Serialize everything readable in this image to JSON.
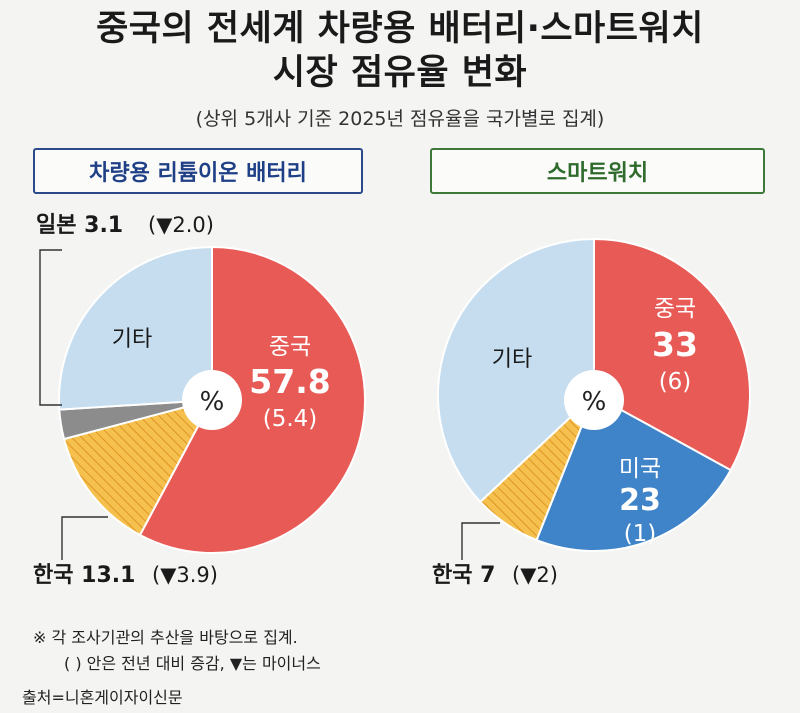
{
  "title_line1": "중국의 전세계 차량용 배터리·스마트워치",
  "title_line2": "시장 점유율 변화",
  "subtitle": "(상위 5개사 기준 2025년 점유율을 국가별로 집계)",
  "center_label": "%",
  "footnote1": "※ 각 조사기관의 추산을 바탕으로 집계.",
  "footnote2": "( ) 안은 전년 대비 증감, ▼는 마이너스",
  "source": "출처=니혼게이자이신문",
  "colors": {
    "china": "#e85a55",
    "korea": "#f5c04e",
    "japan": "#8c8c8c",
    "usa": "#3f83c8",
    "other": "#c5ddef"
  },
  "chart_data": [
    {
      "type": "pie",
      "title": "차량용 리튬이온 배터리",
      "unit": "%",
      "slices": [
        {
          "name": "중국",
          "value": 57.8,
          "change": "(5.4)",
          "color_key": "china"
        },
        {
          "name": "한국",
          "value": 13.1,
          "change": "(▼3.9)",
          "color_key": "korea",
          "hatched": true
        },
        {
          "name": "일본",
          "value": 3.1,
          "change": "(▼2.0)",
          "color_key": "japan"
        },
        {
          "name": "기타",
          "value": 26.0,
          "color_key": "other"
        }
      ],
      "labels": {
        "china_name": "중국",
        "china_value": "57.8",
        "china_change": "(5.4)",
        "other_name": "기타",
        "japan_callout_main": "일본 3.1",
        "japan_callout_change": "(▼2.0)",
        "korea_callout_main": "한국 13.1",
        "korea_callout_change": "(▼3.9)"
      }
    },
    {
      "type": "pie",
      "title": "스마트워치",
      "unit": "%",
      "slices": [
        {
          "name": "중국",
          "value": 33,
          "change": "(6)",
          "color_key": "china"
        },
        {
          "name": "미국",
          "value": 23,
          "change": "(1)",
          "color_key": "usa"
        },
        {
          "name": "한국",
          "value": 7,
          "change": "(▼2)",
          "color_key": "korea",
          "hatched": true
        },
        {
          "name": "기타",
          "value": 37,
          "color_key": "other"
        }
      ],
      "labels": {
        "china_name": "중국",
        "china_value": "33",
        "china_change": "(6)",
        "usa_name": "미국",
        "usa_value": "23",
        "usa_change": "(1)",
        "other_name": "기타",
        "korea_callout_main": "한국 7",
        "korea_callout_change": "(▼2)"
      }
    }
  ]
}
